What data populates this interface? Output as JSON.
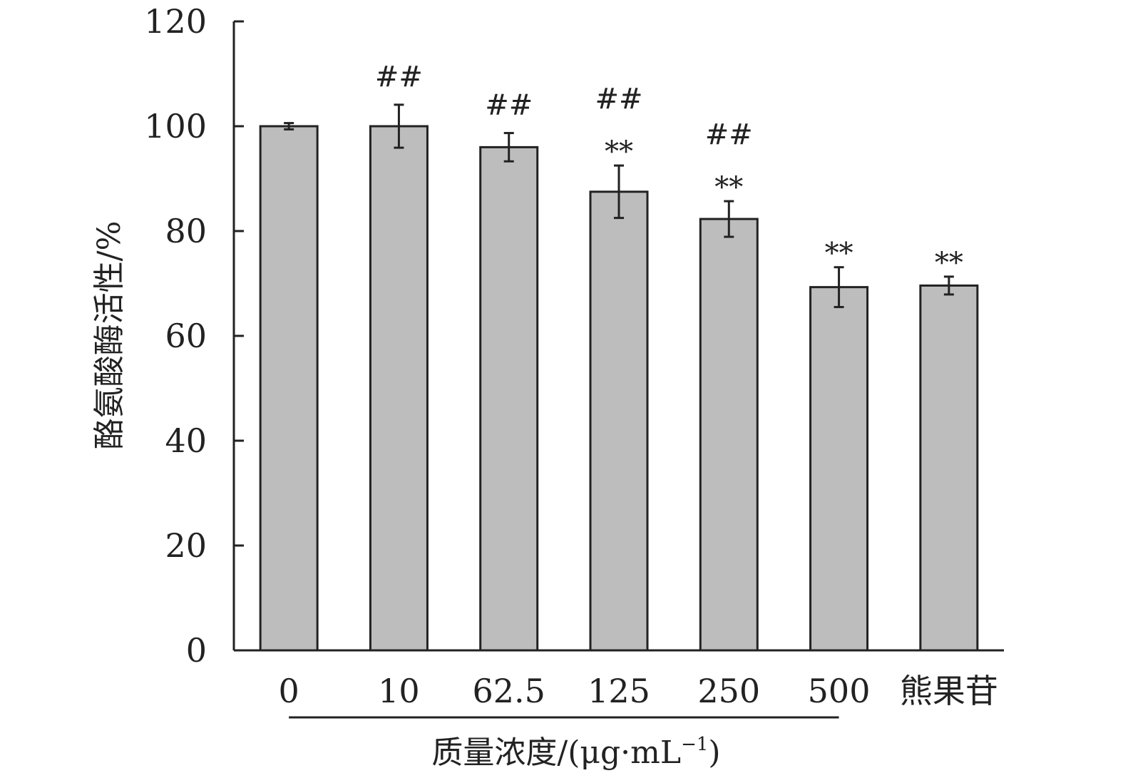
{
  "chart_data": {
    "type": "bar",
    "title": "",
    "ylabel": "酪氨酸酶活性/%",
    "xlabel": "质量浓度/(μg·mL⁻¹)",
    "xlabel_parts": {
      "main": "质量浓度/(μg·mL",
      "sup": "−1",
      "close": ")"
    },
    "ylim": [
      0,
      120
    ],
    "yticks": [
      0,
      20,
      40,
      60,
      80,
      100,
      120
    ],
    "categories": [
      "0",
      "10",
      "62.5",
      "125",
      "250",
      "500",
      "熊果苷"
    ],
    "values": [
      100,
      100,
      96,
      87.5,
      82.3,
      69.3,
      69.6
    ],
    "errors": [
      0.6,
      4.1,
      2.7,
      5.0,
      3.4,
      3.8,
      1.7
    ],
    "annotations_top": [
      "",
      "##",
      "##",
      "##",
      "##",
      "",
      ""
    ],
    "annotations_bottom": [
      "",
      "",
      "",
      "**",
      "**",
      "**",
      "**"
    ],
    "bar_color": "#bdbdbd",
    "bar_edge_color": "#222222",
    "concentration_bracket_range": [
      "0",
      "500"
    ]
  }
}
